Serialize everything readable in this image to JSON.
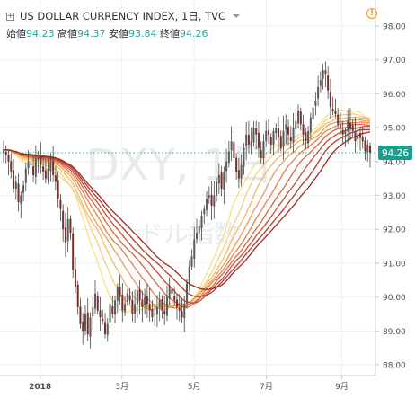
{
  "header": {
    "symbol_title": "US DOLLAR CURRENCY INDEX, 1日, TVC",
    "ohlc": [
      {
        "label": "始値",
        "value": "94.23"
      },
      {
        "label": "高値",
        "value": "94.37"
      },
      {
        "label": "安値",
        "value": "93.84"
      },
      {
        "label": "終値",
        "value": "94.26"
      }
    ],
    "expand_icon": "plus-box-icon",
    "alert_icon": "exclamation-circle-icon"
  },
  "watermark": {
    "symbol": "DXY, 1日",
    "name": "ドル指数"
  },
  "price_tag": "94.26",
  "colors": {
    "up": "#26a69a",
    "down": "#ef5350",
    "candle_body": "#3a3a3a",
    "grid": "#eef0f3",
    "price_tag": "#1f9b8f",
    "ribbon_fast": "#f6d77a",
    "ribbon_slow": "#a12a1e"
  },
  "chart_data": {
    "type": "candlestick",
    "y_ticks": [
      "98.00",
      "97.00",
      "96.00",
      "95.00",
      "94.00",
      "93.00",
      "92.00",
      "91.00",
      "90.00",
      "89.00",
      "88.00"
    ],
    "ylim": [
      87.6,
      98.2
    ],
    "x_ticks": [
      {
        "label": "2018",
        "x": 25,
        "bold": true
      },
      {
        "label": "3月",
        "x": 76
      },
      {
        "label": "5月",
        "x": 121
      },
      {
        "label": "7月",
        "x": 166
      },
      {
        "label": "9月",
        "x": 213
      }
    ],
    "x_range": [
      0,
      234
    ],
    "last_close": 94.26,
    "ribbon_periods": [
      20,
      25,
      30,
      35,
      40,
      45,
      50,
      55,
      60
    ],
    "closes": [
      94.35,
      94.2,
      94.0,
      93.7,
      93.2,
      93.4,
      92.8,
      93.0,
      93.3,
      93.8,
      94.0,
      93.9,
      93.6,
      94.1,
      94.2,
      93.9,
      93.7,
      93.5,
      93.8,
      94.0,
      93.6,
      93.4,
      92.9,
      92.6,
      92.0,
      91.6,
      92.3,
      91.9,
      90.8,
      90.3,
      89.7,
      89.2,
      89.0,
      89.5,
      88.9,
      89.4,
      89.7,
      90.1,
      89.6,
      89.4,
      89.3,
      88.9,
      89.2,
      89.8,
      89.5,
      89.9,
      90.3,
      90.0,
      89.6,
      89.8,
      90.1,
      89.9,
      89.5,
      89.8,
      90.2,
      89.9,
      89.7,
      90.0,
      89.8,
      89.6,
      89.4,
      89.5,
      89.7,
      89.9,
      89.6,
      89.5,
      90.0,
      90.3,
      90.1,
      89.9,
      89.7,
      89.6,
      89.4,
      89.8,
      90.4,
      90.9,
      91.2,
      91.7,
      91.9,
      92.1,
      92.4,
      92.6,
      92.9,
      93.0,
      92.7,
      93.0,
      93.4,
      93.6,
      93.2,
      93.7,
      94.0,
      94.3,
      94.6,
      94.1,
      93.7,
      93.5,
      93.9,
      94.4,
      94.8,
      94.5,
      94.6,
      95.0,
      94.8,
      94.4,
      94.1,
      94.6,
      94.9,
      94.8,
      94.5,
      94.9,
      95.0,
      94.7,
      94.4,
      94.9,
      95.1,
      94.8,
      94.6,
      95.0,
      95.2,
      95.5,
      95.1,
      94.8,
      94.6,
      94.9,
      95.3,
      95.6,
      95.8,
      96.2,
      96.4,
      96.7,
      96.6,
      96.1,
      95.6,
      95.5,
      95.4,
      95.1,
      95.0,
      94.8,
      94.9,
      95.2,
      95.0,
      94.9,
      94.6,
      94.8,
      94.7,
      94.6,
      94.3,
      94.5,
      94.26
    ]
  }
}
